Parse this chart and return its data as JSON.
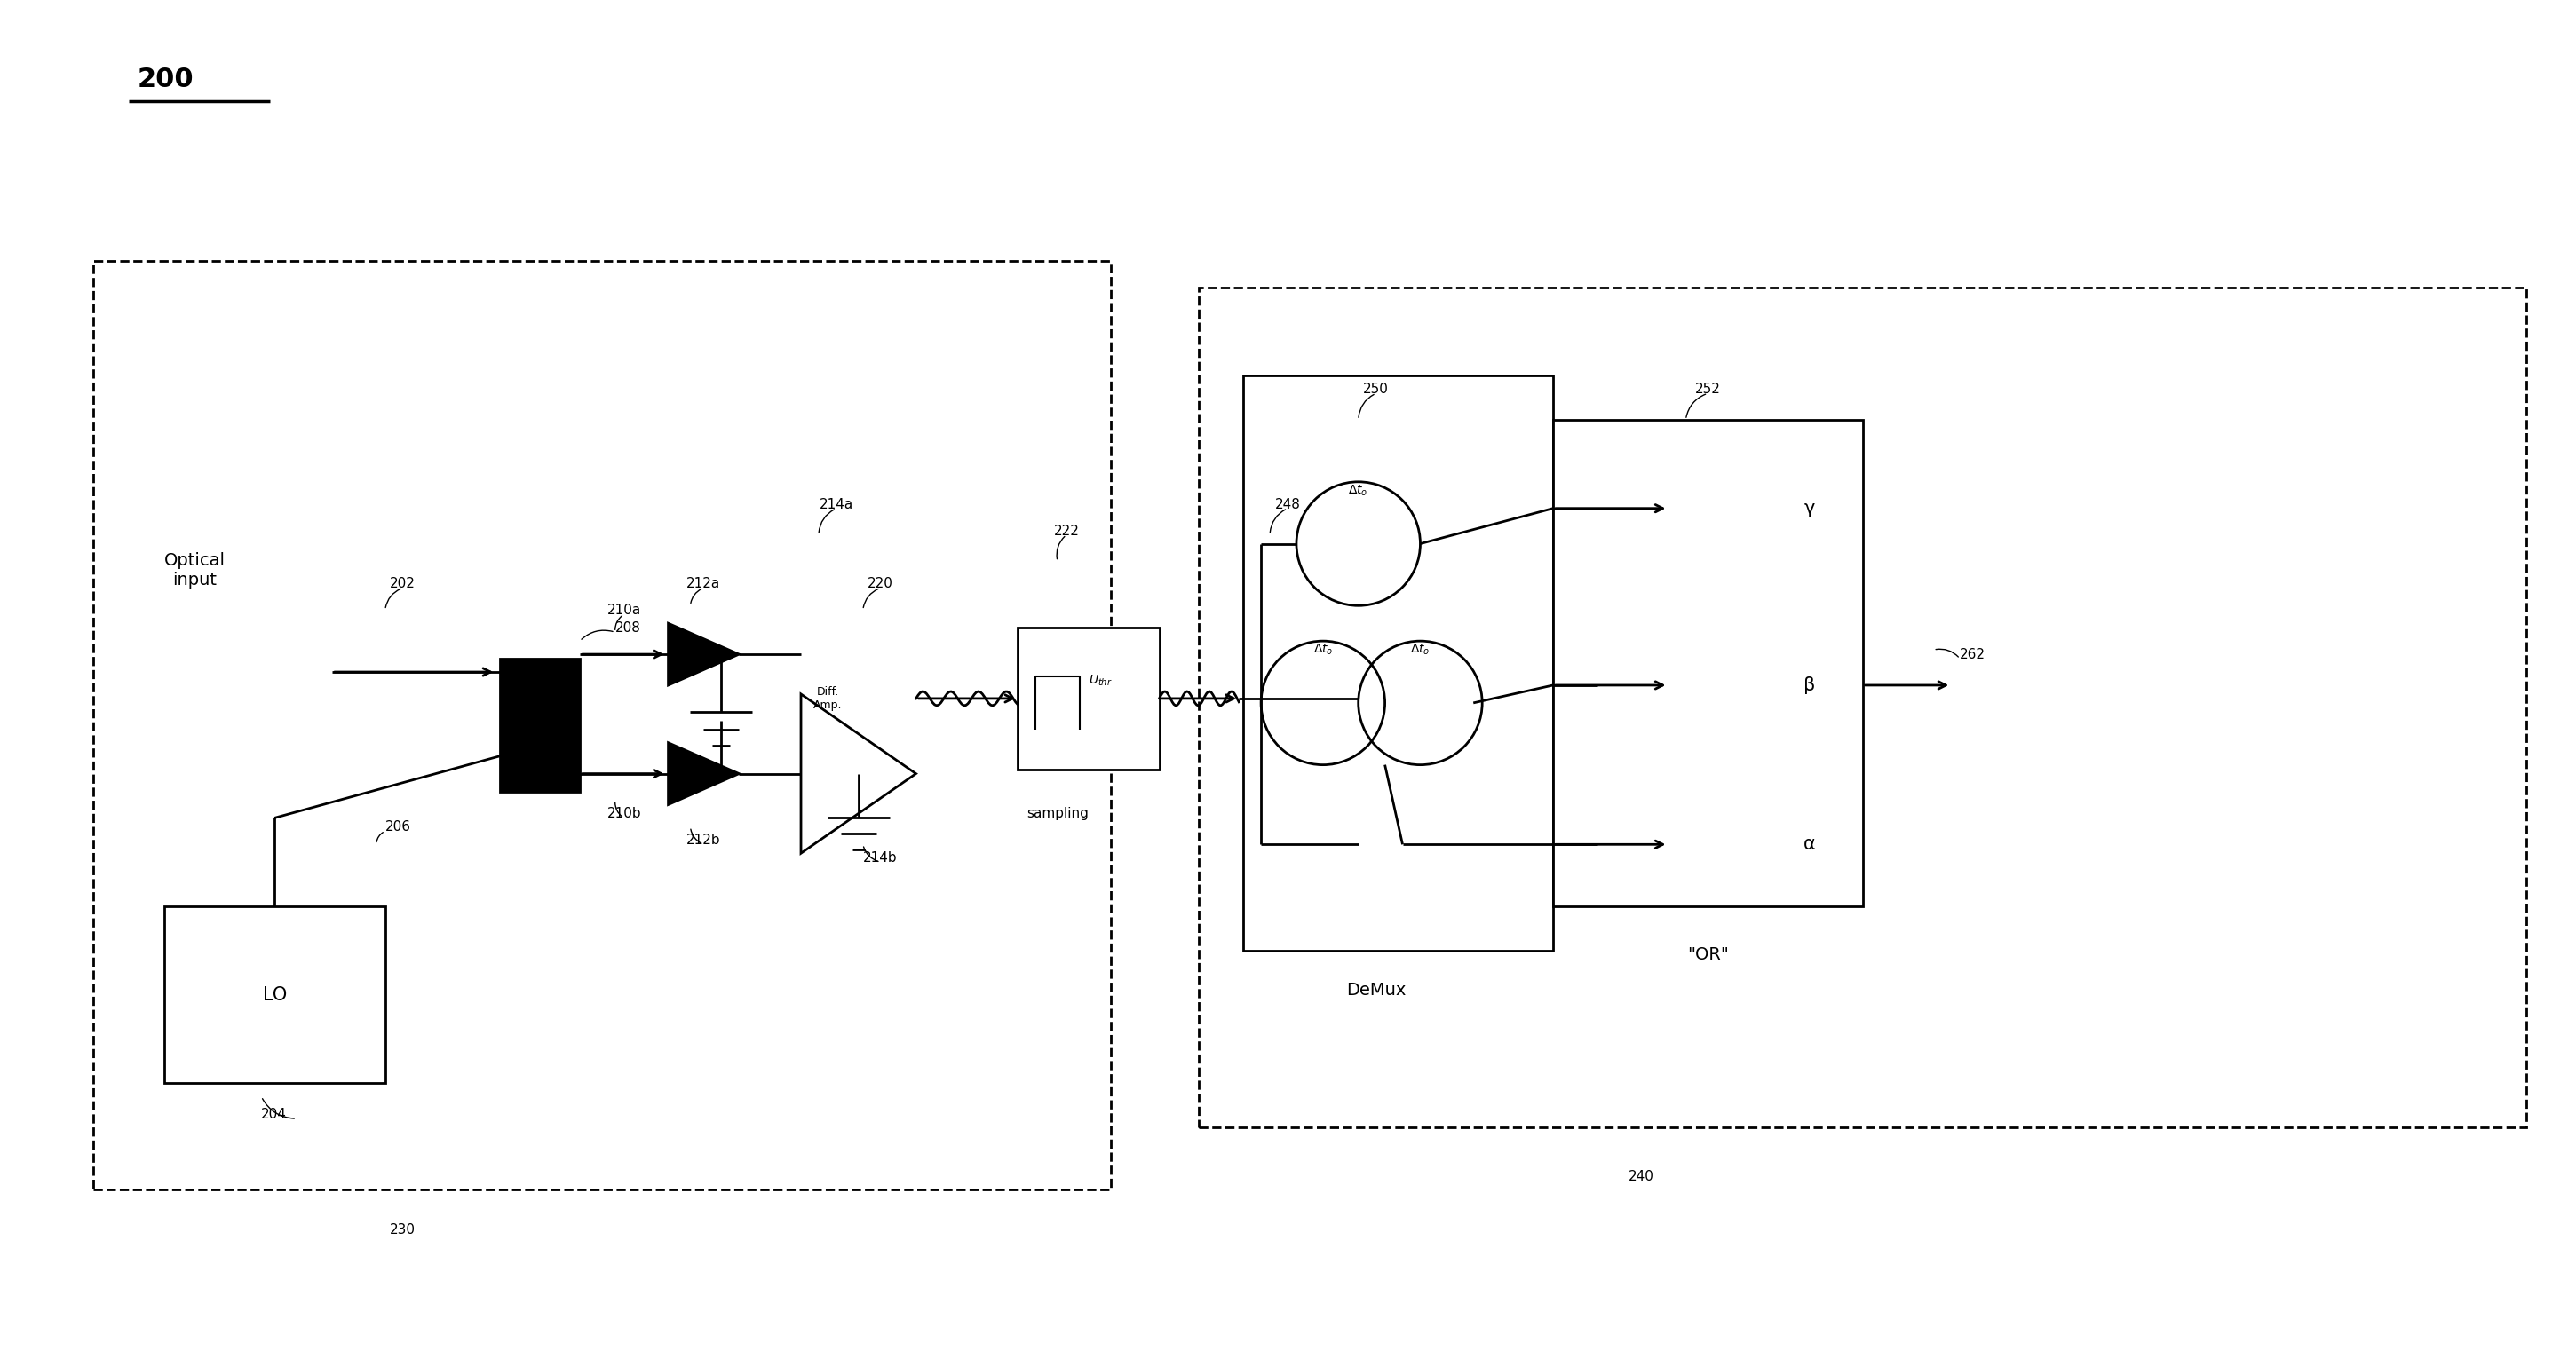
{
  "title": "200",
  "bg_color": "#ffffff",
  "line_color": "#000000",
  "fig_width": 29.01,
  "fig_height": 15.22,
  "labels": {
    "label_200": "200",
    "optical_input": "Optical\ninput",
    "LO": "LO",
    "label_202": "202",
    "label_204": "204",
    "label_206": "206",
    "label_208": "208",
    "label_210a": "210a",
    "label_210b": "210b",
    "label_212a": "212a",
    "label_212b": "212b",
    "label_214a": "214a",
    "label_214b": "214b",
    "label_220": "220",
    "label_222": "222",
    "label_230": "230",
    "label_240": "240",
    "label_248": "248",
    "label_250": "250",
    "label_252": "252",
    "label_262": "262",
    "diff_amp": "Diff.\nAmp.",
    "sampling": "sampling",
    "demux": "DeMux",
    "or": "\"OR\"",
    "uthr": "Uₜₕᵣ",
    "gamma": "γ",
    "beta": "β",
    "alpha": "α",
    "delta_t_top": "Δtₒ",
    "delta_t_mid_l": "Δtₒ",
    "delta_t_mid_r": "Δtₒ"
  }
}
